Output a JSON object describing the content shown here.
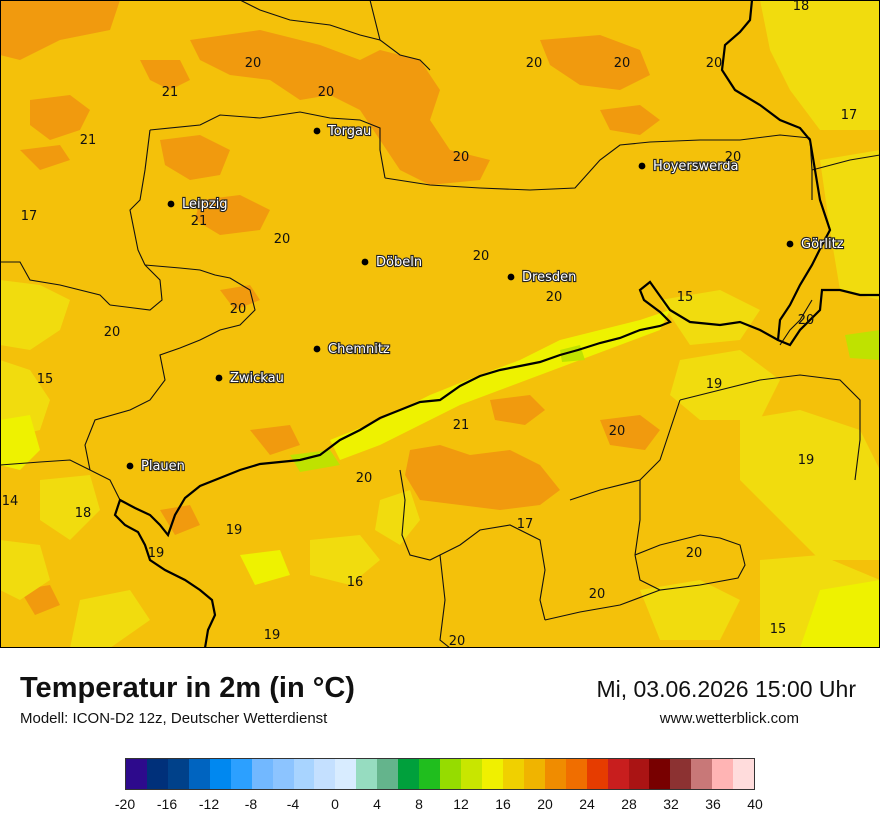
{
  "header": {
    "title": "Temperatur in 2m (in °C)",
    "subtitle": "Modell: ICON-D2 12z, Deutscher Wetterdienst",
    "datetime": "Mi, 03.06.2026 15:00 Uhr",
    "website": "www.wetterblick.com"
  },
  "cities": [
    "Torgau",
    "Leipzig",
    "Döbeln",
    "Dresden",
    "Hoyerswerda",
    "Görlitz",
    "Chemnitz",
    "Zwickau",
    "Plauen"
  ],
  "values": [
    "18",
    "20",
    "20",
    "20",
    "20",
    "17",
    "21",
    "20",
    "21",
    "20",
    "20",
    "17",
    "21",
    "20",
    "20",
    "20",
    "20",
    "20",
    "20",
    "15",
    "15",
    "20",
    "19",
    "21",
    "20",
    "19",
    "20",
    "14",
    "18",
    "19",
    "19",
    "17",
    "20",
    "16",
    "20",
    "19",
    "20",
    "15"
  ],
  "legend": {
    "colors": [
      "#2d0a8c",
      "#00307a",
      "#00418a",
      "#0064c0",
      "#0088f0",
      "#2ca0ff",
      "#72b8ff",
      "#8cc4ff",
      "#a8d4ff",
      "#c4e0ff",
      "#d8ecff",
      "#96dcc0",
      "#64b48c",
      "#00a03c",
      "#20be1e",
      "#96dc00",
      "#c8e600",
      "#f0f000",
      "#f0d000",
      "#f0b400",
      "#f08c00",
      "#f06e00",
      "#e63c00",
      "#c81e1e",
      "#aa1414",
      "#780000",
      "#8c3232",
      "#c87878",
      "#ffb4b4",
      "#ffdcdc"
    ],
    "ticks": [
      "-20",
      "-16",
      "-12",
      "-8",
      "-4",
      "0",
      "4",
      "8",
      "12",
      "16",
      "20",
      "24",
      "28",
      "32",
      "36",
      "40"
    ]
  }
}
